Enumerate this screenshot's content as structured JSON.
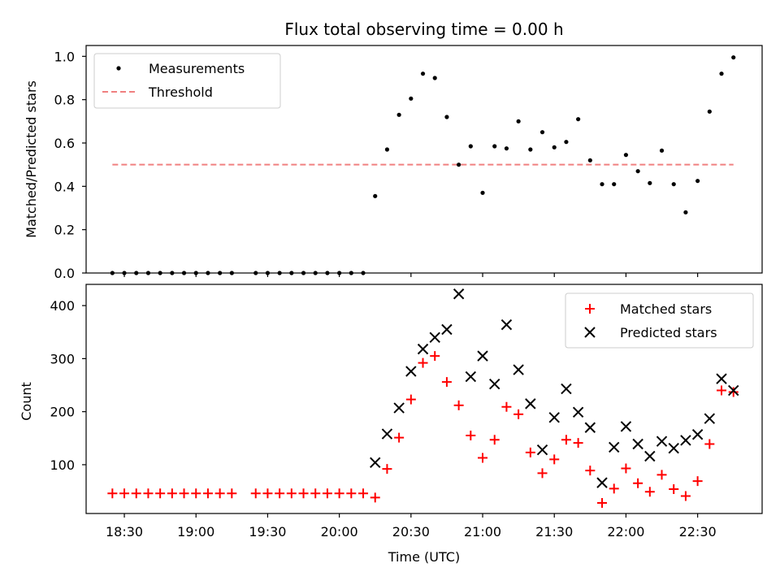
{
  "chart_data": [
    {
      "type": "scatter",
      "title": "Flux total observing time = 0.00 h",
      "xlabel": "",
      "ylabel": "Matched/Predicted stars",
      "ylim": [
        0,
        1.05
      ],
      "yticks": [
        "0.0",
        "0.2",
        "0.4",
        "0.6",
        "0.8",
        "1.0"
      ],
      "grid": false,
      "legend_position": "top-left",
      "series": [
        {
          "name": "Measurements",
          "style": "dot",
          "color": "#000000",
          "x": [
            "18:25",
            "18:30",
            "18:35",
            "18:40",
            "18:45",
            "18:50",
            "18:55",
            "19:00",
            "19:05",
            "19:10",
            "19:15",
            "19:25",
            "19:30",
            "19:35",
            "19:40",
            "19:45",
            "19:50",
            "19:55",
            "20:00",
            "20:05",
            "20:10",
            "20:15",
            "20:20",
            "20:25",
            "20:30",
            "20:35",
            "20:40",
            "20:45",
            "20:50",
            "20:55",
            "21:00",
            "21:05",
            "21:10",
            "21:15",
            "21:20",
            "21:25",
            "21:30",
            "21:35",
            "21:40",
            "21:45",
            "21:50",
            "21:55",
            "22:00",
            "22:05",
            "22:10",
            "22:15",
            "22:20",
            "22:25",
            "22:30",
            "22:35",
            "22:40",
            "22:45"
          ],
          "y": [
            0,
            0,
            0,
            0,
            0,
            0,
            0,
            0,
            0,
            0,
            0,
            0,
            0,
            0,
            0,
            0,
            0,
            0,
            0,
            0,
            0,
            0.355,
            0.57,
            0.73,
            0.805,
            0.92,
            0.9,
            0.72,
            0.5,
            0.585,
            0.37,
            0.585,
            0.575,
            0.7,
            0.57,
            0.65,
            0.58,
            0.605,
            0.71,
            0.52,
            0.41,
            0.41,
            0.545,
            0.47,
            0.415,
            0.565,
            0.41,
            0.28,
            0.425,
            0.745,
            0.92,
            0.995
          ]
        },
        {
          "name": "Threshold",
          "style": "dashed-line",
          "color": "#f08080",
          "x": [
            "18:25",
            "22:45"
          ],
          "y": [
            0.5,
            0.5
          ]
        }
      ]
    },
    {
      "type": "scatter",
      "title": "",
      "xlabel": "Time (UTC)",
      "ylabel": "Count",
      "ylim": [
        8,
        440
      ],
      "yticks": [
        "100",
        "200",
        "300",
        "400"
      ],
      "xticks": [
        "18:30",
        "19:00",
        "19:30",
        "20:00",
        "20:30",
        "21:00",
        "21:30",
        "22:00",
        "22:30"
      ],
      "grid": false,
      "legend_position": "top-right",
      "series": [
        {
          "name": "Matched stars",
          "marker": "+",
          "color": "#ff0000",
          "x": [
            "18:25",
            "18:30",
            "18:35",
            "18:40",
            "18:45",
            "18:50",
            "18:55",
            "19:00",
            "19:05",
            "19:10",
            "19:15",
            "19:25",
            "19:30",
            "19:35",
            "19:40",
            "19:45",
            "19:50",
            "19:55",
            "20:00",
            "20:05",
            "20:10",
            "20:15",
            "20:20",
            "20:25",
            "20:30",
            "20:35",
            "20:40",
            "20:45",
            "20:50",
            "20:55",
            "21:00",
            "21:05",
            "21:10",
            "21:15",
            "21:20",
            "21:25",
            "21:30",
            "21:35",
            "21:40",
            "21:45",
            "21:50",
            "21:55",
            "22:00",
            "22:05",
            "22:10",
            "22:15",
            "22:20",
            "22:25",
            "22:30",
            "22:35",
            "22:40",
            "22:45"
          ],
          "y": [
            46,
            46,
            46,
            46,
            46,
            46,
            46,
            46,
            46,
            46,
            46,
            46,
            46,
            46,
            46,
            46,
            46,
            46,
            46,
            46,
            46,
            38,
            92,
            151,
            223,
            292,
            305,
            256,
            212,
            155,
            113,
            147,
            209,
            195,
            123,
            84,
            110,
            147,
            141,
            89,
            28,
            55,
            93,
            65,
            49,
            81,
            54,
            41,
            69,
            139,
            240,
            237
          ]
        },
        {
          "name": "Predicted stars",
          "marker": "x",
          "color": "#000000",
          "x": [
            "20:15",
            "20:20",
            "20:25",
            "20:30",
            "20:35",
            "20:40",
            "20:45",
            "20:50",
            "20:55",
            "21:00",
            "21:05",
            "21:10",
            "21:15",
            "21:20",
            "21:25",
            "21:30",
            "21:35",
            "21:40",
            "21:45",
            "21:50",
            "21:55",
            "22:00",
            "22:05",
            "22:10",
            "22:15",
            "22:20",
            "22:25",
            "22:30",
            "22:35",
            "22:40",
            "22:45"
          ],
          "y": [
            104,
            158,
            207,
            276,
            318,
            340,
            355,
            422,
            266,
            305,
            252,
            364,
            279,
            215,
            128,
            189,
            243,
            199,
            170,
            66,
            133,
            172,
            139,
            116,
            144,
            131,
            146,
            157,
            187,
            262,
            240
          ]
        }
      ]
    }
  ]
}
